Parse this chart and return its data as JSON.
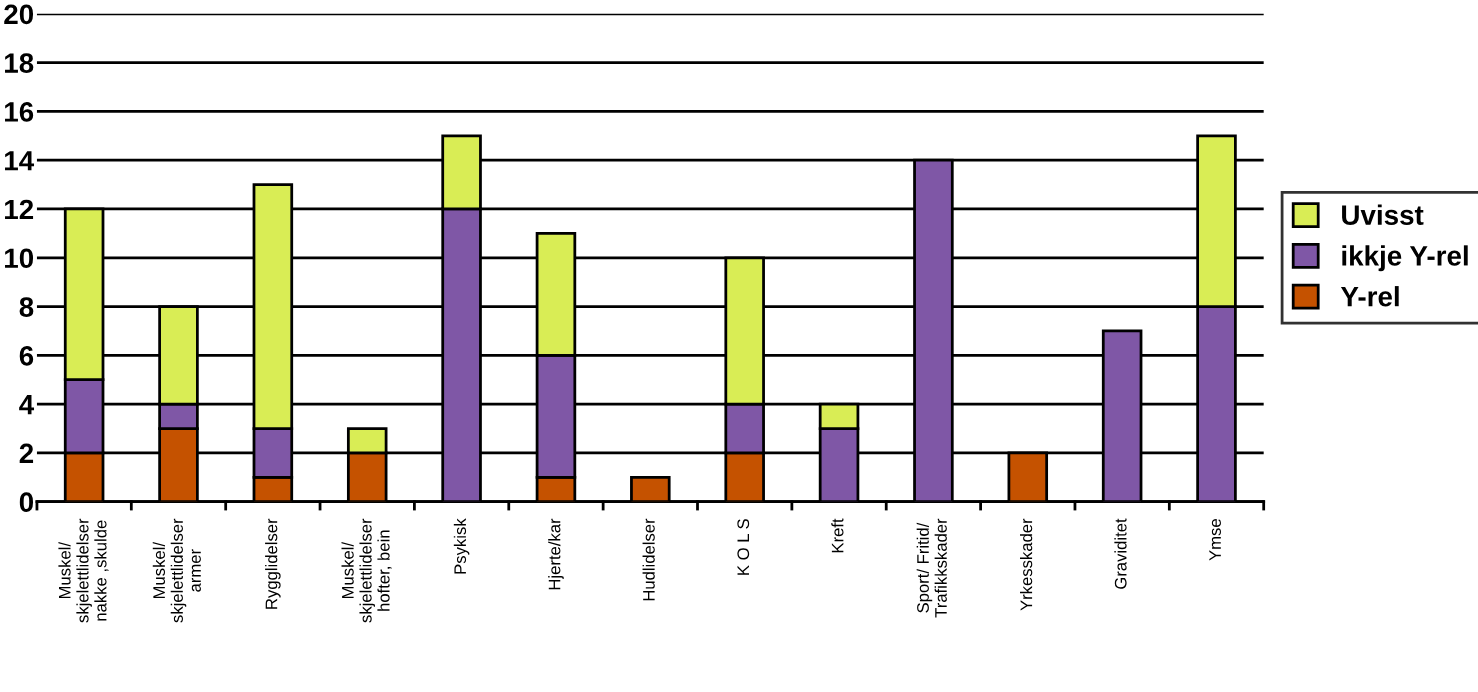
{
  "chart_data": {
    "type": "bar",
    "stacked": true,
    "categories": [
      "Muskel/\nskjelettlidelser\nnakke ,skulde",
      "Muskel/\nskjelettlidelser\narmer",
      "Rygglidelser",
      "Muskel/\nskjelettlidelser\nhofter, bein",
      "Psykisk",
      "Hjerte/kar",
      "Hudlidelser",
      "K O L S",
      "Kreft",
      "Sport/ Fritid/\nTrafikkskader",
      "Yrkesskader",
      "Graviditet",
      "Ymse"
    ],
    "series": [
      {
        "name": "Y-rel",
        "color": "#c55200",
        "values": [
          2,
          3,
          1,
          2,
          0,
          1,
          1,
          2,
          0,
          0,
          2,
          0,
          0
        ]
      },
      {
        "name": "ikkje Y-rel",
        "color": "#7f57a6",
        "values": [
          3,
          1,
          2,
          0,
          12,
          5,
          0,
          2,
          3,
          14,
          0,
          7,
          8
        ]
      },
      {
        "name": "Uvisst",
        "color": "#d9ed55",
        "values": [
          7,
          4,
          10,
          1,
          3,
          5,
          0,
          6,
          1,
          0,
          0,
          0,
          7
        ]
      }
    ],
    "ylim": [
      0,
      20
    ],
    "yticks": [
      0,
      2,
      4,
      6,
      8,
      10,
      12,
      14,
      16,
      18,
      20
    ],
    "grid": "y",
    "legend": "right"
  }
}
